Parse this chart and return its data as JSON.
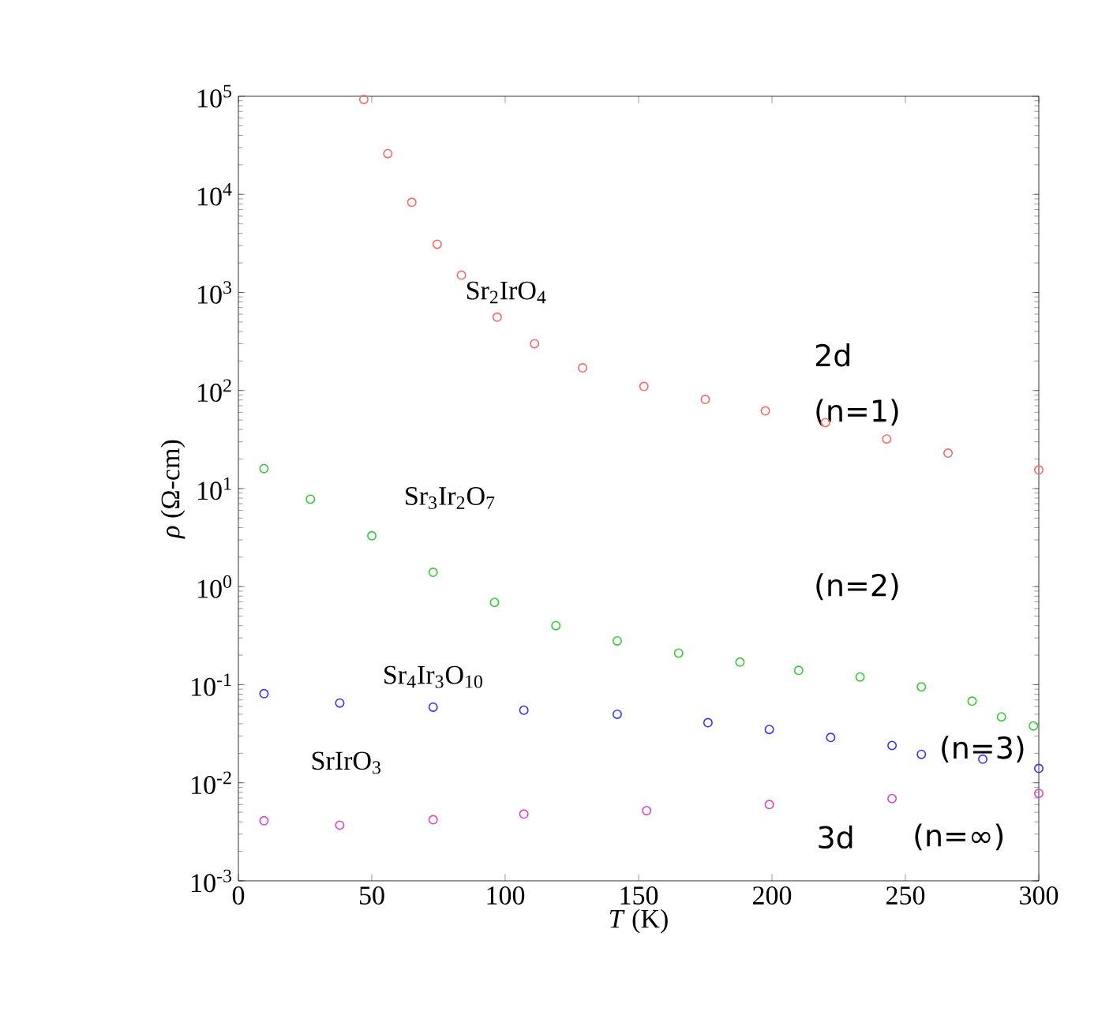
{
  "chart_data": {
    "type": "scatter",
    "xlabel": "*T* (K)",
    "ylabel": "*ρ* (Ω-cm)",
    "log": "y",
    "marker": "circle",
    "xlim": [
      0,
      300
    ],
    "xticks": [
      0,
      50,
      100,
      150,
      200,
      250,
      300
    ],
    "ylim": [
      0.001,
      100000
    ],
    "yticks": [
      {
        "value": 0.001,
        "label": "10$^{-3}$"
      },
      {
        "value": 0.01,
        "label": "10$^{-2}$"
      },
      {
        "value": 0.1,
        "label": "10$^{-1}$"
      },
      {
        "value": 1,
        "label": "10$^{0}$"
      },
      {
        "value": 10,
        "label": "10$^{1}$"
      },
      {
        "value": 100,
        "label": "10$^{2}$"
      },
      {
        "value": 1000,
        "label": "10$^{3}$"
      },
      {
        "value": 10000,
        "label": "10$^{4}$"
      },
      {
        "value": 100000,
        "label": "10$^{5}$"
      }
    ],
    "series": [
      {
        "name": "Sr$_{2}$IrO$_{4}$",
        "color": "#ff6666",
        "x": [
          47,
          56,
          65,
          74.5,
          83.6,
          97,
          111,
          129,
          152,
          175,
          197.5,
          220,
          243,
          266,
          300
        ],
        "values": [
          93000,
          26000,
          8300,
          3100,
          1500,
          560,
          300,
          170,
          110,
          81,
          62,
          47,
          32,
          23,
          15.5
        ]
      },
      {
        "name": "Sr$_{3}$Ir$_{2}$O$_{7}$",
        "color": "#33cc33",
        "x": [
          9.6,
          27,
          50,
          73,
          96,
          119,
          142,
          165,
          188,
          210,
          233,
          256,
          275,
          286,
          298
        ],
        "values": [
          16,
          7.8,
          3.3,
          1.4,
          0.69,
          0.4,
          0.28,
          0.21,
          0.17,
          0.14,
          0.12,
          0.095,
          0.068,
          0.047,
          0.038
        ]
      },
      {
        "name": "Sr$_{4}$Ir$_{3}$O$_{10}$",
        "color": "#3333ff",
        "x": [
          9.6,
          38,
          73,
          107,
          142,
          176,
          199,
          222,
          245,
          256,
          279,
          300
        ],
        "values": [
          0.081,
          0.065,
          0.059,
          0.055,
          0.05,
          0.041,
          0.035,
          0.029,
          0.024,
          0.0195,
          0.0174,
          0.014
        ]
      },
      {
        "name": "SrIrO$_{3}$",
        "color": "#dd44cc",
        "x": [
          9.6,
          38,
          73,
          107,
          153,
          199,
          245,
          300
        ],
        "values": [
          0.0041,
          0.0037,
          0.0042,
          0.0048,
          0.0052,
          0.006,
          0.0069,
          0.0078
        ]
      }
    ],
    "annotations": [
      "2d",
      "(n=1)",
      "(n=2)",
      "(n=3)",
      "3d",
      "(n=∞)"
    ]
  }
}
